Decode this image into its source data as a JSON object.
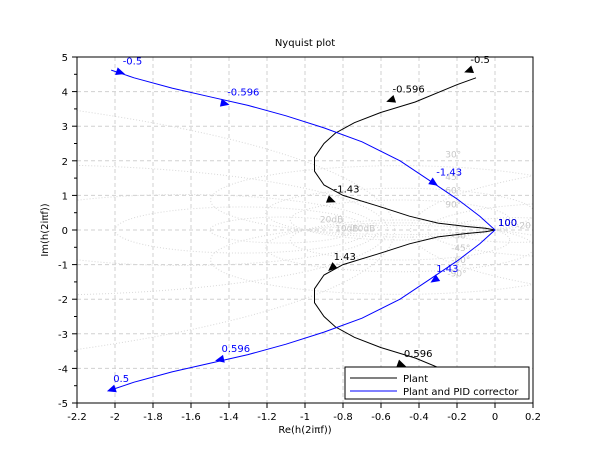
{
  "chart_data": {
    "type": "line",
    "title": "Nyquist plot",
    "xlabel": "Re(h(2iπf))",
    "ylabel": "Im(h(2iπf))",
    "xlim": [
      -2.2,
      0.2
    ],
    "ylim": [
      -5,
      5
    ],
    "xticks": [
      "-2.2",
      "-2",
      "-1.8",
      "-1.6",
      "-1.4",
      "-1.2",
      "-1",
      "-0.8",
      "-0.6",
      "-0.4",
      "-0.2",
      "0",
      "0.2"
    ],
    "yticks": [
      "-5",
      "-4",
      "-3",
      "-2",
      "-1",
      "0",
      "1",
      "2",
      "3",
      "4",
      "5"
    ],
    "grid": true,
    "legend_position": "bottom-right",
    "grid_labels": [
      "30°",
      "45°",
      "60°",
      "90°",
      "-30°",
      "-45°",
      "-60°",
      "-90°",
      "20dB",
      "10dB",
      "-10dB",
      "-20"
    ],
    "series": [
      {
        "name": "Plant",
        "color": "#000000",
        "x": [
          0.0,
          -0.05,
          -0.15,
          -0.3,
          -0.45,
          -0.62,
          -0.8,
          -0.9,
          -0.95,
          -0.95,
          -0.9,
          -0.84,
          -0.74,
          -0.6,
          -0.42,
          -0.2,
          -0.1
        ],
        "y": [
          0.0,
          -0.05,
          -0.1,
          -0.2,
          -0.4,
          -0.7,
          -1.0,
          -1.3,
          -1.7,
          -2.1,
          -2.5,
          -2.8,
          -3.1,
          -3.4,
          -3.7,
          -4.2,
          -4.4
        ],
        "mirror": true,
        "arrows": [
          {
            "x": -0.86,
            "y": 0.85,
            "label": "-1.43"
          },
          {
            "x": -0.55,
            "y": 3.75,
            "label": "-0.596"
          },
          {
            "x": -0.14,
            "y": 4.6,
            "label": "-0.5"
          },
          {
            "x": -0.86,
            "y": -1.1,
            "label": "1.43"
          },
          {
            "x": -0.49,
            "y": -3.9,
            "label": "0.596"
          },
          {
            "x": 0.0,
            "y": 0.0,
            "label": "100"
          }
        ]
      },
      {
        "name": "Plant and PID corrector",
        "color": "#0000ff",
        "x": [
          0.0,
          -0.08,
          -0.2,
          -0.35,
          -0.5,
          -0.7,
          -0.9,
          -1.1,
          -1.3,
          -1.5,
          -1.7,
          -1.9,
          -2.02
        ],
        "y": [
          0.0,
          -0.4,
          -0.9,
          -1.45,
          -2.0,
          -2.55,
          -2.95,
          -3.3,
          -3.6,
          -3.85,
          -4.1,
          -4.4,
          -4.62
        ],
        "mirror": true,
        "arrows": [
          {
            "x": -0.32,
            "y": -1.45,
            "label": "1.43"
          },
          {
            "x": -1.45,
            "y": -3.75,
            "label": "0.596"
          },
          {
            "x": -2.02,
            "y": -4.62,
            "label": "0.5"
          },
          {
            "x": -0.32,
            "y": 1.35,
            "label": "-1.43"
          },
          {
            "x": -1.42,
            "y": 3.65,
            "label": "-0.596"
          },
          {
            "x": -1.97,
            "y": 4.55,
            "label": "-0.5"
          },
          {
            "x": 0.0,
            "y": 0.0,
            "label": "100"
          }
        ]
      }
    ]
  }
}
